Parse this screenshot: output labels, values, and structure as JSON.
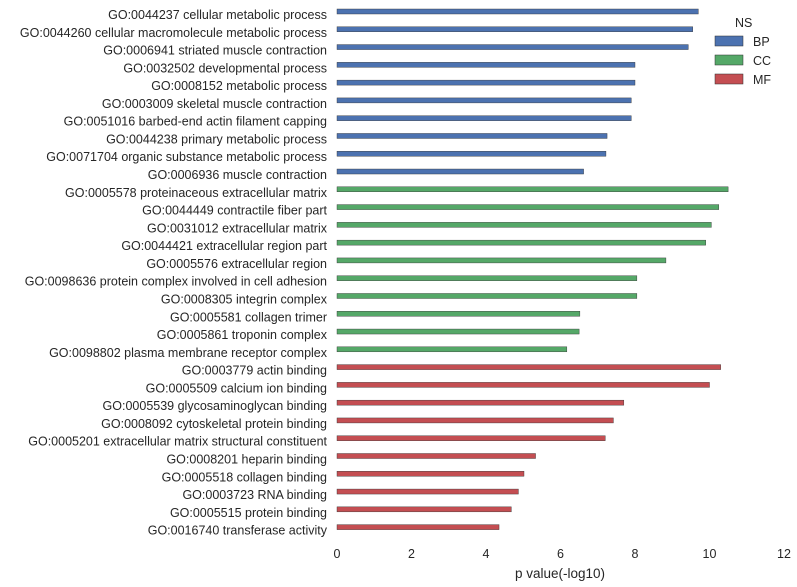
{
  "chart_data": {
    "type": "bar",
    "orientation": "horizontal",
    "xlabel": "p value(-log10)",
    "ylabel": "",
    "xlim": [
      0,
      12
    ],
    "xticks": [
      0,
      2,
      4,
      6,
      8,
      10,
      12
    ],
    "grid": false,
    "legend": {
      "title": "NS",
      "placement": "top-right",
      "entries": [
        {
          "name": "BP",
          "color": "#4c72b0"
        },
        {
          "name": "CC",
          "color": "#55a868"
        },
        {
          "name": "MF",
          "color": "#c44e52"
        }
      ]
    },
    "categories": [
      {
        "label": "GO:0044237 cellular metabolic process",
        "value": 9.7,
        "ns": "BP"
      },
      {
        "label": "GO:0044260 cellular macromolecule metabolic process",
        "value": 9.55,
        "ns": "BP"
      },
      {
        "label": "GO:0006941 striated muscle contraction",
        "value": 9.43,
        "ns": "BP"
      },
      {
        "label": "GO:0032502 developmental process",
        "value": 8.0,
        "ns": "BP"
      },
      {
        "label": "GO:0008152 metabolic process",
        "value": 8.0,
        "ns": "BP"
      },
      {
        "label": "GO:0003009 skeletal muscle contraction",
        "value": 7.9,
        "ns": "BP"
      },
      {
        "label": "GO:0051016 barbed-end actin filament capping",
        "value": 7.9,
        "ns": "BP"
      },
      {
        "label": "GO:0044238 primary metabolic process",
        "value": 7.25,
        "ns": "BP"
      },
      {
        "label": "GO:0071704 organic substance metabolic process",
        "value": 7.22,
        "ns": "BP"
      },
      {
        "label": "GO:0006936 muscle contraction",
        "value": 6.62,
        "ns": "BP"
      },
      {
        "label": "GO:0005578 proteinaceous extracellular matrix",
        "value": 10.5,
        "ns": "CC"
      },
      {
        "label": "GO:0044449 contractile fiber part",
        "value": 10.25,
        "ns": "CC"
      },
      {
        "label": "GO:0031012 extracellular matrix",
        "value": 10.05,
        "ns": "CC"
      },
      {
        "label": "GO:0044421 extracellular region part",
        "value": 9.9,
        "ns": "CC"
      },
      {
        "label": "GO:0005576 extracellular region",
        "value": 8.83,
        "ns": "CC"
      },
      {
        "label": "GO:0098636 protein complex involved in cell adhesion",
        "value": 8.05,
        "ns": "CC"
      },
      {
        "label": "GO:0008305 integrin complex",
        "value": 8.05,
        "ns": "CC"
      },
      {
        "label": "GO:0005581 collagen trimer",
        "value": 6.52,
        "ns": "CC"
      },
      {
        "label": "GO:0005861 troponin complex",
        "value": 6.5,
        "ns": "CC"
      },
      {
        "label": "GO:0098802 plasma membrane receptor complex",
        "value": 6.17,
        "ns": "CC"
      },
      {
        "label": "GO:0003779 actin binding",
        "value": 10.3,
        "ns": "MF"
      },
      {
        "label": "GO:0005509 calcium ion binding",
        "value": 10.0,
        "ns": "MF"
      },
      {
        "label": "GO:0005539 glycosaminoglycan binding",
        "value": 7.7,
        "ns": "MF"
      },
      {
        "label": "GO:0008092 cytoskeletal protein binding",
        "value": 7.42,
        "ns": "MF"
      },
      {
        "label": "GO:0005201 extracellular matrix structural constituent",
        "value": 7.2,
        "ns": "MF"
      },
      {
        "label": "GO:0008201 heparin binding",
        "value": 5.33,
        "ns": "MF"
      },
      {
        "label": "GO:0005518 collagen binding",
        "value": 5.02,
        "ns": "MF"
      },
      {
        "label": "GO:0003723 RNA binding",
        "value": 4.87,
        "ns": "MF"
      },
      {
        "label": "GO:0005515 protein binding",
        "value": 4.68,
        "ns": "MF"
      },
      {
        "label": "GO:0016740 transferase activity",
        "value": 4.35,
        "ns": "MF"
      }
    ]
  }
}
